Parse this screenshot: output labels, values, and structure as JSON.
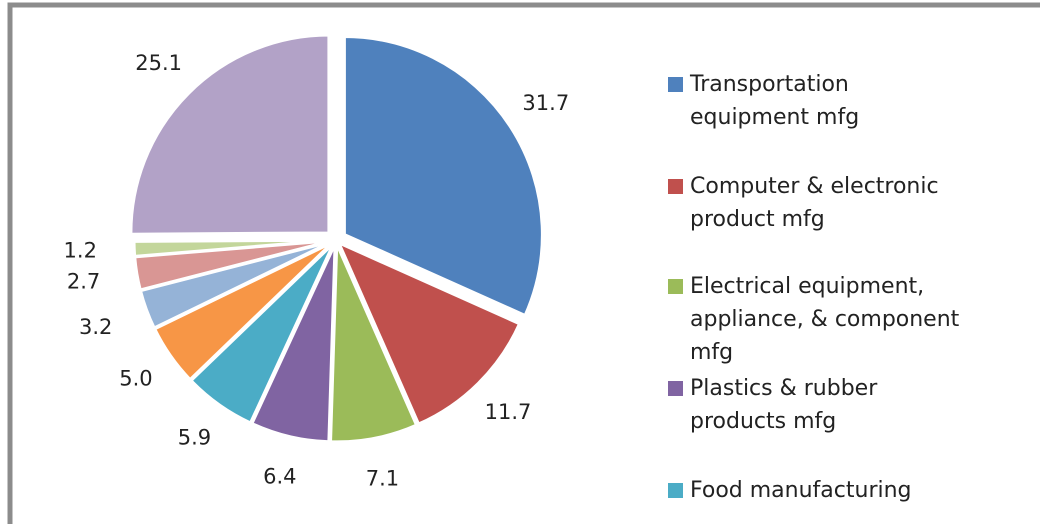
{
  "chart_data": {
    "type": "pie",
    "categories": [
      "Transportation equipment mfg",
      "Computer & electronic product mfg",
      "Electrical equipment, appliance, & component mfg",
      "Plastics & rubber products mfg",
      "Food manufacturing",
      null,
      null,
      null,
      null,
      null
    ],
    "values": [
      31.7,
      11.7,
      7.1,
      6.4,
      5.9,
      5.0,
      3.2,
      2.7,
      1.2,
      25.1
    ],
    "value_labels": [
      "31.7",
      "11.7",
      "7.1",
      "6.4",
      "5.9",
      "5.0",
      "3.2",
      "2.7",
      "1.2",
      "25.1"
    ],
    "colors": [
      "#4f81bd",
      "#c0504d",
      "#9bbb59",
      "#8064a2",
      "#4bacc6",
      "#f79646",
      "#95b3d7",
      "#d99694",
      "#c3d69b",
      "#b2a2c7"
    ],
    "legend": "right"
  }
}
